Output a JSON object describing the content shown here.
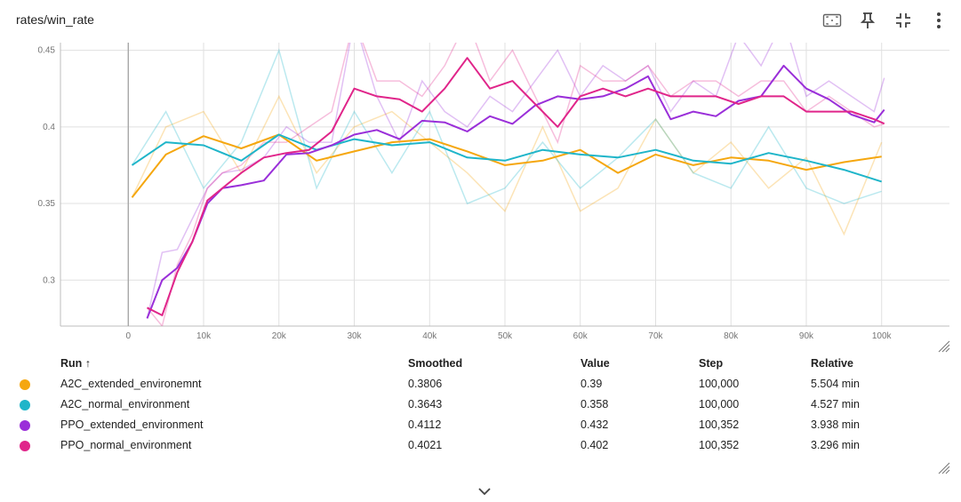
{
  "card": {
    "title": "rates/win_rate"
  },
  "toolbar": {
    "icons": [
      "fit-domain-icon",
      "pin-icon",
      "fullscreen-exit-icon",
      "more-vert-icon"
    ]
  },
  "table": {
    "headers": {
      "run": "Run ↑",
      "smoothed": "Smoothed",
      "value": "Value",
      "step": "Step",
      "relative": "Relative"
    },
    "rows": [
      {
        "run": "A2C_extended_environemnt",
        "smoothed": "0.3806",
        "value": "0.39",
        "step": "100,000",
        "relative": "5.504 min",
        "color": "#f5a70f"
      },
      {
        "run": "A2C_normal_environment",
        "smoothed": "0.3643",
        "value": "0.358",
        "step": "100,000",
        "relative": "4.527 min",
        "color": "#1fb5c9"
      },
      {
        "run": "PPO_extended_environment",
        "smoothed": "0.4112",
        "value": "0.432",
        "step": "100,352",
        "relative": "3.938 min",
        "color": "#9a2fd9"
      },
      {
        "run": "PPO_normal_environment",
        "smoothed": "0.4021",
        "value": "0.402",
        "step": "100,352",
        "relative": "3.296 min",
        "color": "#e0258a"
      }
    ]
  },
  "chart_data": {
    "type": "line",
    "title": "rates/win_rate",
    "xlim": [
      -9000,
      109000
    ],
    "ylim": [
      0.27,
      0.455
    ],
    "xticks": [
      "0",
      "10k",
      "20k",
      "30k",
      "40k",
      "50k",
      "60k",
      "70k",
      "80k",
      "90k",
      "100k"
    ],
    "xtick_values": [
      0,
      10000,
      20000,
      30000,
      40000,
      50000,
      60000,
      70000,
      80000,
      90000,
      100000
    ],
    "yticks": [
      "0.3",
      "0.35",
      "0.4",
      "0.45"
    ],
    "ytick_values": [
      0.3,
      0.35,
      0.4,
      0.45
    ],
    "grid": true,
    "series": [
      {
        "name": "A2C_extended_environemnt",
        "color": "#f5a70f",
        "x": [
          500,
          5000,
          10000,
          15000,
          20000,
          25000,
          30000,
          35000,
          40000,
          45000,
          50000,
          55000,
          60000,
          65000,
          70000,
          75000,
          80000,
          85000,
          90000,
          95000,
          100000
        ],
        "smoothed": [
          0.354,
          0.382,
          0.394,
          0.386,
          0.395,
          0.378,
          0.384,
          0.39,
          0.392,
          0.384,
          0.375,
          0.378,
          0.385,
          0.37,
          0.382,
          0.375,
          0.38,
          0.378,
          0.372,
          0.377,
          0.3806
        ],
        "raw": [
          0.354,
          0.4,
          0.41,
          0.37,
          0.42,
          0.37,
          0.4,
          0.41,
          0.39,
          0.37,
          0.345,
          0.4,
          0.345,
          0.36,
          0.405,
          0.37,
          0.39,
          0.36,
          0.38,
          0.33,
          0.39
        ]
      },
      {
        "name": "A2C_normal_environment",
        "color": "#1fb5c9",
        "x": [
          500,
          5000,
          10000,
          15000,
          20000,
          25000,
          30000,
          35000,
          40000,
          45000,
          50000,
          55000,
          60000,
          65000,
          70000,
          75000,
          80000,
          85000,
          90000,
          95000,
          100000
        ],
        "smoothed": [
          0.375,
          0.39,
          0.388,
          0.378,
          0.395,
          0.385,
          0.392,
          0.388,
          0.39,
          0.38,
          0.378,
          0.385,
          0.382,
          0.38,
          0.385,
          0.378,
          0.376,
          0.383,
          0.378,
          0.372,
          0.3643
        ],
        "raw": [
          0.375,
          0.41,
          0.36,
          0.39,
          0.45,
          0.36,
          0.41,
          0.37,
          0.41,
          0.35,
          0.36,
          0.39,
          0.36,
          0.38,
          0.405,
          0.37,
          0.36,
          0.4,
          0.36,
          0.35,
          0.358
        ]
      },
      {
        "name": "PPO_extended_environment",
        "color": "#9a2fd9",
        "x": [
          2500,
          4500,
          6500,
          8500,
          10500,
          12500,
          15000,
          18000,
          21000,
          24000,
          27000,
          30000,
          33000,
          36000,
          39000,
          42000,
          45000,
          48000,
          51000,
          54000,
          57000,
          60000,
          63000,
          66000,
          69000,
          72000,
          75000,
          78000,
          81000,
          84000,
          87000,
          90000,
          93000,
          96000,
          99000,
          100352
        ],
        "smoothed": [
          0.275,
          0.3,
          0.308,
          0.325,
          0.35,
          0.36,
          0.362,
          0.365,
          0.382,
          0.383,
          0.388,
          0.395,
          0.398,
          0.392,
          0.404,
          0.403,
          0.397,
          0.407,
          0.402,
          0.414,
          0.42,
          0.418,
          0.42,
          0.425,
          0.433,
          0.405,
          0.41,
          0.407,
          0.417,
          0.42,
          0.44,
          0.425,
          0.418,
          0.408,
          0.403,
          0.4112
        ],
        "raw": [
          0.275,
          0.318,
          0.32,
          0.34,
          0.36,
          0.37,
          0.372,
          0.38,
          0.4,
          0.39,
          0.39,
          0.47,
          0.42,
          0.39,
          0.43,
          0.41,
          0.4,
          0.42,
          0.41,
          0.43,
          0.45,
          0.42,
          0.44,
          0.43,
          0.44,
          0.41,
          0.43,
          0.42,
          0.46,
          0.44,
          0.47,
          0.42,
          0.43,
          0.42,
          0.41,
          0.432
        ]
      },
      {
        "name": "PPO_normal_environment",
        "color": "#e0258a",
        "x": [
          2500,
          4500,
          6500,
          8500,
          10500,
          12500,
          15000,
          18000,
          21000,
          24000,
          27000,
          30000,
          33000,
          36000,
          39000,
          42000,
          45000,
          48000,
          51000,
          54000,
          57000,
          60000,
          63000,
          66000,
          69000,
          72000,
          75000,
          78000,
          81000,
          84000,
          87000,
          90000,
          93000,
          96000,
          99000,
          100352
        ],
        "smoothed": [
          0.282,
          0.277,
          0.305,
          0.325,
          0.352,
          0.36,
          0.37,
          0.38,
          0.383,
          0.385,
          0.397,
          0.425,
          0.42,
          0.418,
          0.41,
          0.425,
          0.445,
          0.425,
          0.43,
          0.415,
          0.4,
          0.42,
          0.425,
          0.42,
          0.425,
          0.42,
          0.42,
          0.42,
          0.415,
          0.42,
          0.42,
          0.41,
          0.41,
          0.41,
          0.405,
          0.4021
        ],
        "raw": [
          0.282,
          0.27,
          0.31,
          0.33,
          0.36,
          0.37,
          0.375,
          0.39,
          0.39,
          0.4,
          0.41,
          0.47,
          0.43,
          0.43,
          0.42,
          0.44,
          0.47,
          0.43,
          0.45,
          0.42,
          0.39,
          0.44,
          0.43,
          0.43,
          0.44,
          0.42,
          0.43,
          0.43,
          0.42,
          0.43,
          0.43,
          0.41,
          0.42,
          0.41,
          0.4,
          0.402
        ]
      }
    ]
  }
}
